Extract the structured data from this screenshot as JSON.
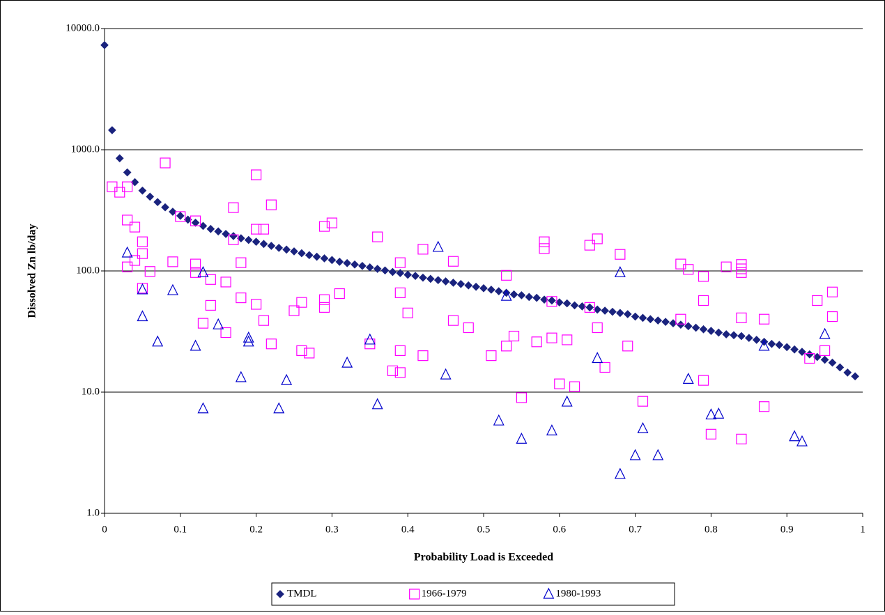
{
  "chart_data": {
    "type": "scatter",
    "xlabel": "Probability Load is Exceeded",
    "ylabel": "Dissolved Zn lb/day",
    "xlim": [
      0,
      1
    ],
    "xticks": [
      0,
      0.1,
      0.2,
      0.3,
      0.4,
      0.5,
      0.6,
      0.7,
      0.8,
      0.9,
      1
    ],
    "ylim": [
      1,
      10000
    ],
    "ylog": true,
    "yticks": [
      {
        "value": 1,
        "label": "1.0"
      },
      {
        "value": 10,
        "label": "10.0"
      },
      {
        "value": 100,
        "label": "100.0"
      },
      {
        "value": 1000,
        "label": "1000.0"
      },
      {
        "value": 10000,
        "label": "10000.0"
      }
    ],
    "grid": true,
    "legend": "bottom",
    "series": [
      {
        "name": "TMDL",
        "color": "#1a237e",
        "marker": "diamond",
        "filled": true,
        "x": [
          0,
          0.01,
          0.02,
          0.03,
          0.04,
          0.05,
          0.06,
          0.07,
          0.08,
          0.09,
          0.1,
          0.11,
          0.12,
          0.13,
          0.14,
          0.15,
          0.16,
          0.17,
          0.18,
          0.19,
          0.2,
          0.21,
          0.22,
          0.23,
          0.24,
          0.25,
          0.26,
          0.27,
          0.28,
          0.29,
          0.3,
          0.31,
          0.32,
          0.33,
          0.34,
          0.35,
          0.36,
          0.37,
          0.38,
          0.39,
          0.4,
          0.41,
          0.42,
          0.43,
          0.44,
          0.45,
          0.46,
          0.47,
          0.48,
          0.49,
          0.5,
          0.51,
          0.52,
          0.53,
          0.54,
          0.55,
          0.56,
          0.57,
          0.58,
          0.59,
          0.6,
          0.61,
          0.62,
          0.63,
          0.64,
          0.65,
          0.66,
          0.67,
          0.68,
          0.69,
          0.7,
          0.71,
          0.72,
          0.73,
          0.74,
          0.75,
          0.76,
          0.77,
          0.78,
          0.79,
          0.8,
          0.81,
          0.82,
          0.83,
          0.84,
          0.85,
          0.86,
          0.87,
          0.88,
          0.89,
          0.9,
          0.91,
          0.92,
          0.93,
          0.94,
          0.95,
          0.96,
          0.97,
          0.98,
          0.99
        ],
        "values": [
          7300,
          1450,
          850,
          650,
          540,
          460,
          410,
          370,
          335,
          308,
          285,
          265,
          250,
          235,
          222,
          212,
          202,
          194,
          186,
          180,
          174,
          167,
          161,
          155,
          150,
          145,
          140,
          135,
          131,
          127,
          123,
          119,
          116,
          113,
          110,
          107,
          104,
          101,
          98,
          96,
          93,
          91,
          88,
          86,
          84,
          82,
          80,
          78,
          76,
          74,
          72,
          70,
          68,
          66,
          64,
          63,
          61,
          60,
          58,
          57,
          55,
          54,
          52,
          51,
          50,
          48,
          47,
          46,
          45,
          44,
          42,
          41,
          40,
          39,
          38,
          37,
          36,
          35,
          34,
          33,
          32,
          31,
          30,
          29.5,
          29,
          28,
          27,
          26,
          25,
          24.5,
          23.5,
          22.5,
          21.5,
          20.5,
          19.5,
          18.5,
          17.5,
          16,
          14.5,
          13.5
        ]
      },
      {
        "name": "1966-1979",
        "color": "#ff00ff",
        "marker": "square",
        "filled": false,
        "x": [
          0.01,
          0.02,
          0.03,
          0.03,
          0.03,
          0.04,
          0.04,
          0.05,
          0.05,
          0.05,
          0.06,
          0.08,
          0.09,
          0.1,
          0.12,
          0.12,
          0.12,
          0.13,
          0.14,
          0.14,
          0.16,
          0.16,
          0.17,
          0.17,
          0.18,
          0.18,
          0.2,
          0.2,
          0.2,
          0.21,
          0.21,
          0.22,
          0.22,
          0.25,
          0.26,
          0.26,
          0.27,
          0.29,
          0.29,
          0.29,
          0.3,
          0.31,
          0.35,
          0.36,
          0.38,
          0.39,
          0.39,
          0.39,
          0.39,
          0.4,
          0.42,
          0.42,
          0.46,
          0.46,
          0.48,
          0.51,
          0.53,
          0.53,
          0.54,
          0.55,
          0.57,
          0.58,
          0.58,
          0.59,
          0.59,
          0.6,
          0.61,
          0.62,
          0.64,
          0.64,
          0.65,
          0.65,
          0.66,
          0.68,
          0.69,
          0.71,
          0.76,
          0.76,
          0.77,
          0.79,
          0.79,
          0.79,
          0.8,
          0.82,
          0.84,
          0.84,
          0.84,
          0.84,
          0.84,
          0.87,
          0.87,
          0.93,
          0.94,
          0.95,
          0.96,
          0.96
        ],
        "values": [
          495,
          446,
          495,
          263,
          108,
          230,
          122,
          174,
          139,
          72,
          99,
          778,
          119,
          281,
          259,
          114,
          97,
          37,
          52,
          85,
          81,
          31,
          333,
          181,
          117,
          60,
          621,
          221,
          53,
          221,
          39,
          351,
          25,
          47,
          55,
          22,
          21,
          233,
          58,
          50,
          249,
          65,
          25,
          191,
          15,
          117,
          66,
          22,
          14.5,
          45,
          20,
          151,
          120,
          39,
          34,
          20,
          92,
          24,
          29,
          9,
          26,
          174,
          153,
          56,
          28,
          11.7,
          27,
          11.1,
          163,
          50,
          184,
          34,
          16,
          137,
          24,
          8.4,
          114,
          40,
          103,
          90,
          57,
          12.5,
          4.5,
          108,
          113,
          104,
          97,
          41,
          4.1,
          40,
          7.6,
          19,
          57,
          22,
          67,
          42
        ]
      },
      {
        "name": "1980-1993",
        "color": "#0000cc",
        "marker": "triangle",
        "filled": false,
        "x": [
          0.03,
          0.05,
          0.05,
          0.07,
          0.09,
          0.12,
          0.13,
          0.13,
          0.15,
          0.18,
          0.19,
          0.19,
          0.23,
          0.24,
          0.32,
          0.35,
          0.36,
          0.44,
          0.45,
          0.52,
          0.53,
          0.55,
          0.59,
          0.61,
          0.65,
          0.68,
          0.68,
          0.7,
          0.71,
          0.73,
          0.77,
          0.8,
          0.81,
          0.87,
          0.91,
          0.92,
          0.95
        ],
        "values": [
          141,
          70,
          42,
          26,
          69,
          24,
          97,
          7.3,
          36,
          13.2,
          28,
          26,
          7.3,
          12.5,
          17.4,
          27,
          7.9,
          157,
          13.9,
          5.8,
          62,
          4.1,
          4.8,
          8.3,
          19,
          97,
          2.1,
          3,
          5,
          3,
          12.8,
          6.5,
          6.6,
          24,
          4.3,
          3.9,
          30
        ]
      }
    ]
  }
}
